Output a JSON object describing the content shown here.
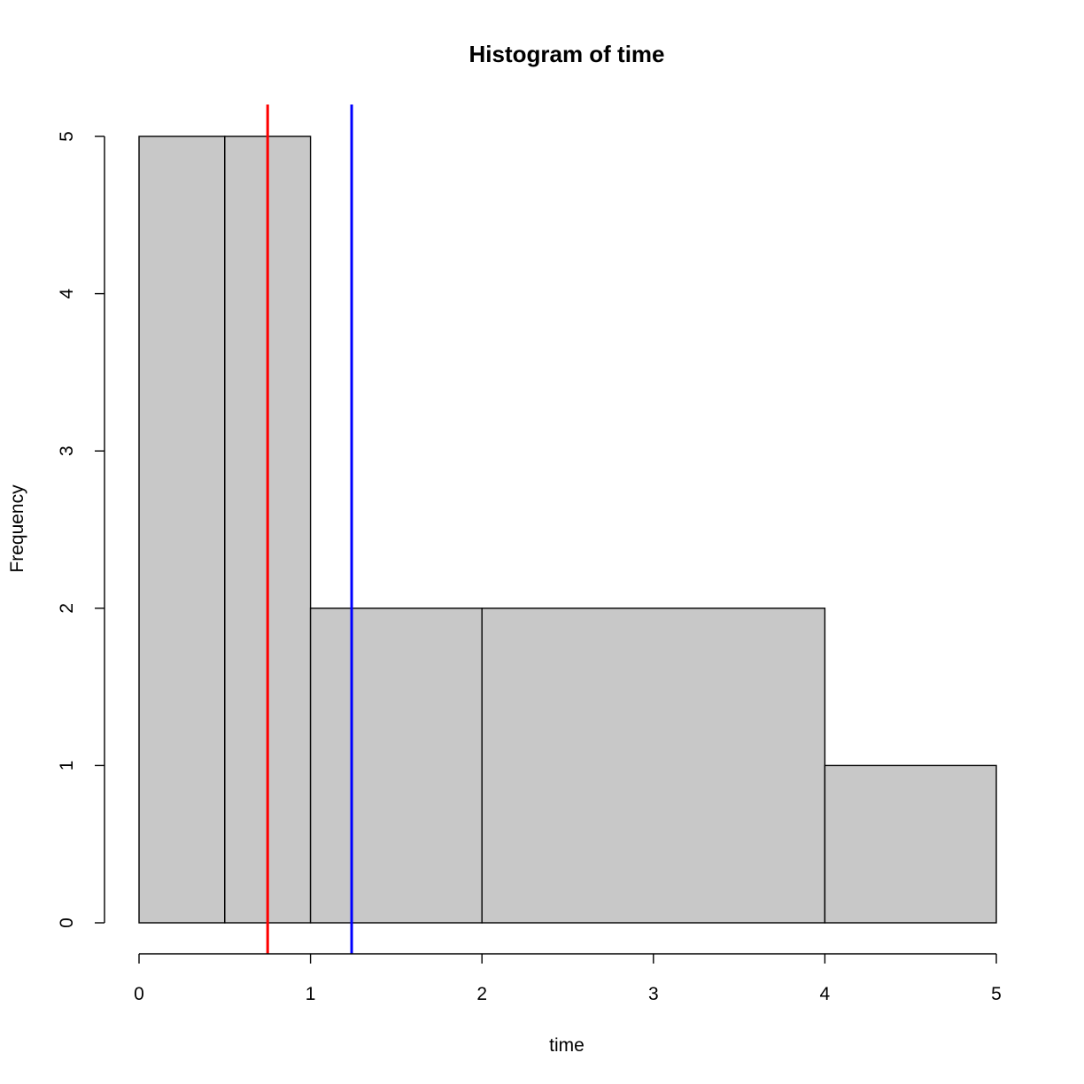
{
  "chart_data": {
    "type": "histogram",
    "title": "Histogram of time",
    "xlabel": "time",
    "ylabel": "Frequency",
    "xlim": [
      0,
      5
    ],
    "ylim": [
      0,
      5
    ],
    "xticks": [
      0,
      1,
      2,
      3,
      4,
      5
    ],
    "yticks": [
      0,
      1,
      2,
      3,
      4,
      5
    ],
    "bins": [
      {
        "start": 0,
        "end": 0.5,
        "count": 5
      },
      {
        "start": 0.5,
        "end": 1,
        "count": 5
      },
      {
        "start": 1,
        "end": 2,
        "count": 2
      },
      {
        "start": 2,
        "end": 4,
        "count": 2
      },
      {
        "start": 4,
        "end": 5,
        "count": 1
      }
    ],
    "vlines": [
      {
        "x": 0.75,
        "color": "#ff0000"
      },
      {
        "x": 1.24,
        "color": "#0000ff"
      }
    ],
    "bar_fill": "#c8c8c8",
    "bar_stroke": "#000000",
    "grid": false,
    "legend": false
  }
}
